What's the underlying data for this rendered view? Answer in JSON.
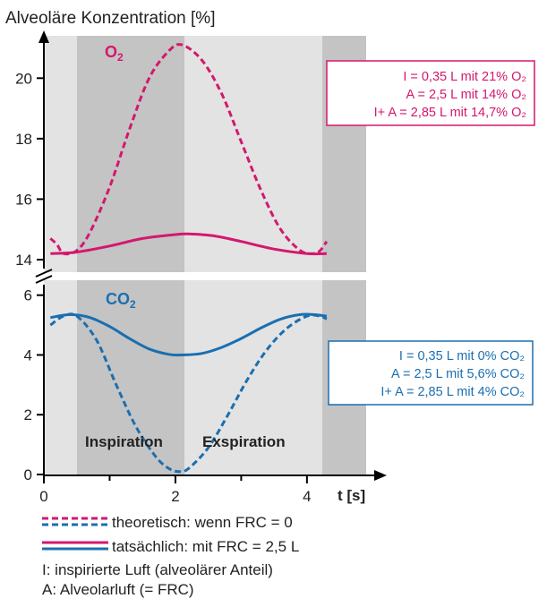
{
  "chart_data": [
    {
      "type": "line",
      "title": "O₂",
      "ylabel": "Alveoläre Konzentration [%]",
      "ylim": [
        14,
        21.4
      ],
      "yticks": [
        14,
        16,
        18,
        20
      ],
      "xlim": [
        0,
        4.9
      ],
      "color": "#d4176e",
      "series": [
        {
          "name": "theoretisch: wenn FRC = 0",
          "style": "dashed",
          "x": [
            0.1,
            0.2,
            0.3,
            0.5,
            0.7,
            1.0,
            1.3,
            1.6,
            1.9,
            2.1,
            2.4,
            2.7,
            3.0,
            3.3,
            3.6,
            3.9,
            4.1,
            4.2,
            4.3
          ],
          "y": [
            14.7,
            14.5,
            14.2,
            14.3,
            14.9,
            16.4,
            18.3,
            20.0,
            20.9,
            21.1,
            20.6,
            19.5,
            17.9,
            16.3,
            15.0,
            14.3,
            14.2,
            14.3,
            14.6
          ]
        },
        {
          "name": "tatsächlich: mit FRC = 2,5 L",
          "style": "solid",
          "x": [
            0.1,
            0.5,
            1.0,
            1.5,
            2.0,
            2.2,
            2.6,
            3.0,
            3.5,
            4.0,
            4.3
          ],
          "y": [
            14.2,
            14.25,
            14.45,
            14.7,
            14.83,
            14.85,
            14.78,
            14.6,
            14.35,
            14.2,
            14.2
          ]
        }
      ],
      "legend_box": [
        "I = 0,35 L mit 21% O₂",
        "A = 2,5 L mit 14% O₂",
        "I+ A = 2,85 L mit 14,7% O₂"
      ]
    },
    {
      "type": "line",
      "title": "CO₂",
      "ylim": [
        0,
        6.5
      ],
      "yticks": [
        0,
        2,
        4,
        6
      ],
      "xlabel": "t [s]",
      "xlim": [
        0,
        4.9
      ],
      "xticks": [
        0,
        2,
        4
      ],
      "color": "#1a6fb0",
      "series": [
        {
          "name": "theoretisch: wenn FRC = 0",
          "style": "dashed",
          "x": [
            0.1,
            0.3,
            0.5,
            0.8,
            1.1,
            1.4,
            1.7,
            1.9,
            2.05,
            2.2,
            2.5,
            2.8,
            3.1,
            3.4,
            3.7,
            4.0,
            4.2,
            4.3
          ],
          "y": [
            5.0,
            5.3,
            5.3,
            4.5,
            3.0,
            1.6,
            0.6,
            0.2,
            0.1,
            0.2,
            0.9,
            2.0,
            3.2,
            4.2,
            4.9,
            5.3,
            5.3,
            5.2
          ]
        },
        {
          "name": "tatsächlich: mit FRC = 2,5 L",
          "style": "solid",
          "x": [
            0.1,
            0.4,
            0.7,
            1.0,
            1.3,
            1.6,
            1.9,
            2.1,
            2.4,
            2.7,
            3.0,
            3.3,
            3.6,
            3.9,
            4.1,
            4.3
          ],
          "y": [
            5.25,
            5.35,
            5.25,
            4.95,
            4.55,
            4.2,
            4.02,
            4.0,
            4.05,
            4.25,
            4.55,
            4.9,
            5.2,
            5.35,
            5.35,
            5.3
          ]
        }
      ],
      "legend_box": [
        "I = 0,35 L mit 0% CO₂",
        "A = 2,5 L mit 5,6% CO₂",
        "I+ A = 2,85 L mit 4% CO₂"
      ]
    }
  ],
  "phases": {
    "inspiration": "Inspiration",
    "expiration": "Exspiration"
  },
  "legend": {
    "dashed": "theoretisch: wenn FRC = 0",
    "solid": "tatsächlich: mit FRC = 2,5 L",
    "note1": "I: inspirierte Luft (alveolärer Anteil)",
    "note2": "A: Alveolarluft (= FRC)"
  },
  "colors": {
    "o2": "#d4176e",
    "co2": "#1a6fb0",
    "bg_light": "#e3e3e3",
    "bg_dark": "#c4c4c4"
  }
}
